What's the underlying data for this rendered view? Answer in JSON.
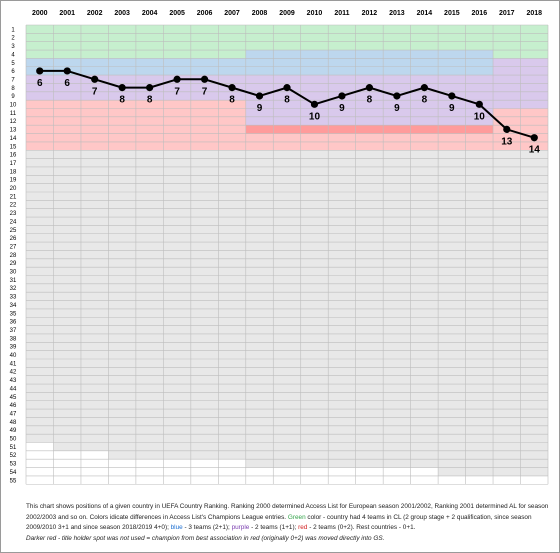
{
  "chart_data": {
    "type": "line",
    "categories": [
      "2000",
      "2001",
      "2002",
      "2003",
      "2004",
      "2005",
      "2006",
      "2007",
      "2008",
      "2009",
      "2010",
      "2011",
      "2012",
      "2013",
      "2014",
      "2015",
      "2016",
      "2017",
      "2018"
    ],
    "x": [
      "2000",
      "2001",
      "2002",
      "2003",
      "2004",
      "2005",
      "2006",
      "2007",
      "2008",
      "2009",
      "2010",
      "2011",
      "2012",
      "2013",
      "2014",
      "2015",
      "2016",
      "2017",
      "2018"
    ],
    "values": [
      6,
      6,
      7,
      8,
      8,
      7,
      7,
      8,
      9,
      8,
      10,
      9,
      8,
      9,
      8,
      9,
      10,
      13,
      14
    ],
    "rank_ticks": [
      "1",
      "2",
      "3",
      "4",
      "5",
      "6",
      "7",
      "8",
      "9",
      "10",
      "11",
      "12",
      "13",
      "14",
      "15",
      "16",
      "17",
      "18",
      "19",
      "20",
      "21",
      "22",
      "23",
      "24",
      "25",
      "26",
      "27",
      "28",
      "29",
      "30",
      "31",
      "32",
      "33",
      "34",
      "35",
      "36",
      "37",
      "38",
      "39",
      "40",
      "41",
      "42",
      "43",
      "44",
      "45",
      "46",
      "47",
      "48",
      "49",
      "50",
      "51",
      "52",
      "53",
      "54",
      "55"
    ],
    "ylim": [
      1,
      55
    ],
    "y_inverted": true,
    "grid": true,
    "access_list": {
      "green_to": [
        4,
        4,
        4,
        4,
        4,
        4,
        4,
        4,
        3,
        3,
        3,
        3,
        3,
        3,
        3,
        3,
        3,
        4,
        4
      ],
      "blue_to": [
        6,
        6,
        6,
        6,
        6,
        6,
        6,
        6,
        6,
        6,
        6,
        6,
        6,
        6,
        6,
        6,
        6,
        4,
        4
      ],
      "purple_to": [
        9,
        9,
        9,
        9,
        9,
        9,
        9,
        9,
        12,
        12,
        12,
        12,
        12,
        12,
        12,
        12,
        12,
        10,
        10
      ],
      "red_to": [
        15,
        15,
        15,
        15,
        15,
        15,
        15,
        15,
        15,
        15,
        15,
        15,
        15,
        15,
        15,
        15,
        15,
        15,
        15
      ],
      "darker_red_to": [
        9,
        9,
        9,
        9,
        9,
        9,
        9,
        9,
        13,
        13,
        13,
        13,
        13,
        13,
        13,
        13,
        13,
        10,
        10
      ],
      "gray_to": [
        50,
        51,
        51,
        52,
        52,
        52,
        52,
        52,
        53,
        53,
        53,
        53,
        53,
        53,
        53,
        54,
        54,
        54,
        54
      ],
      "colors": {
        "green": "#c6efce",
        "blue": "#bdd7ee",
        "purple": "#d9c9ec",
        "red": "#ffc7c7",
        "darker_red": "#ff9b9b",
        "gray": "#e8e8e8",
        "white": "#ffffff",
        "line": "#000000"
      }
    }
  },
  "caption": {
    "part1": "This chart shows positions of a given country in UEFA Country Ranking. Ranking 2000 determined Access List for European season 2001/2002, Ranking 2001 determined AL for season 2002/2003 and so on.  Colors idicate differences in Access List's Champions League entries. ",
    "green": "Green",
    "part2": " color - country had 4 teams in CL (2 group stage + 2 qualification, since season 2009/2010 3+1 and since season 2018/2019 4+0); ",
    "blue": "blue",
    "part3": " - 3 teams (2+1); ",
    "purple": "purple",
    "part4": " - 2 teams (1+1); ",
    "red": "red",
    "part5": " - 2 teams (0+2). Rest countries - 0+1.",
    "part6": "Darker red - title holder spot was not used = champion from best association in red (originally 0+2) was moved directly  into GS."
  }
}
